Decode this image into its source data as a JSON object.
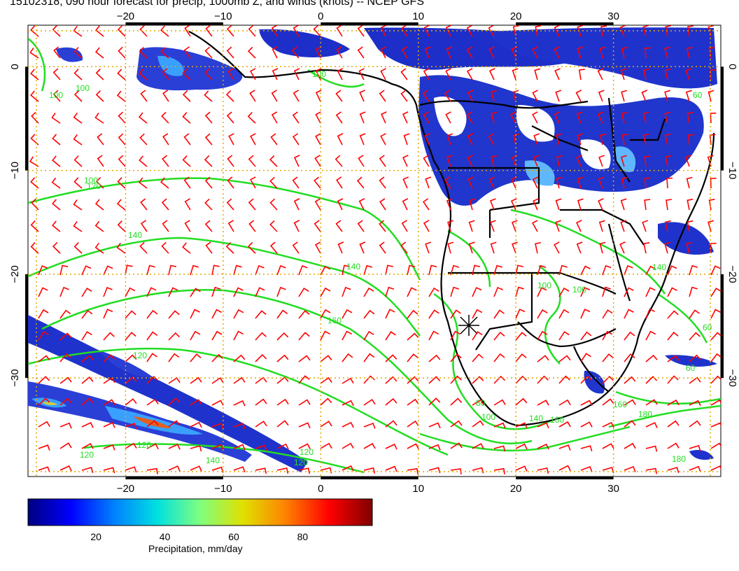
{
  "title": "15102318, 090 hour forecast for precip, 1000mb Z, and winds (knots) -- NCEP GFS",
  "map": {
    "lon_range": [
      -30,
      41
    ],
    "lat_range": [
      -39.5,
      4
    ],
    "lon_ticks": [
      "−20",
      "−10",
      "0",
      "10",
      "20",
      "30"
    ],
    "lat_ticks": [
      "0",
      "−10",
      "−20",
      "−30"
    ],
    "grid": "dotted",
    "grid_color": "#e0a800",
    "wind_barb_color": "#ff0000",
    "contour_color": "#22dd22",
    "coastline_color": "#000000"
  },
  "contour_labels": [
    "100",
    "100",
    "120",
    "140",
    "140",
    "120",
    "160",
    "120",
    "120",
    "140",
    "120",
    "100",
    "100",
    "120",
    "100",
    "80",
    "100",
    "160",
    "140",
    "160",
    "180",
    "140",
    "60",
    "60",
    "180",
    "100",
    "60"
  ],
  "colorbar": {
    "title": "Precipitation, mm/day",
    "ticks": [
      "20",
      "40",
      "60",
      "80"
    ],
    "tick_values": [
      20,
      40,
      60,
      80
    ],
    "range": [
      0,
      100
    ],
    "colors": [
      "#00007f",
      "#0000ff",
      "#0080ff",
      "#00e0e0",
      "#7fff7f",
      "#e0e000",
      "#ff8000",
      "#ff0000",
      "#7f0000"
    ]
  }
}
